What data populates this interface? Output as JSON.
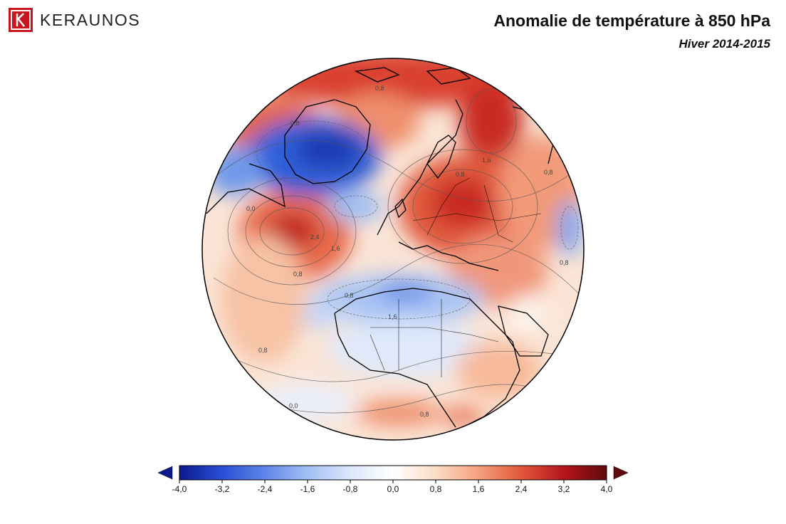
{
  "header": {
    "brand": "KERAUNOS",
    "title": "Anomalie de température à 850 hPa",
    "subtitle": "Hiver 2014-2015"
  },
  "map": {
    "contour_labels": [
      "0,8",
      "1,6",
      "0,8",
      "1,6",
      "0,8",
      "0,8",
      "0,0",
      "2,4",
      "1,6",
      "0,8",
      "0,8",
      "0,8",
      "0,8",
      "0,0",
      "0,8"
    ]
  },
  "colorbar": {
    "ticks": [
      "-4,0",
      "-3,2",
      "-2,4",
      "-1,6",
      "-0,8",
      "0,0",
      "0,8",
      "1,6",
      "2,4",
      "3,2",
      "4,0"
    ],
    "min": -4.0,
    "max": 4.0,
    "colors": [
      "#0a1a8c",
      "#2a4fd6",
      "#5f86e8",
      "#a2bff3",
      "#dbe7fb",
      "#ffffff",
      "#fcdcc6",
      "#f5a27e",
      "#e2573b",
      "#b5141b",
      "#5e0a0e"
    ]
  },
  "colors": {
    "brand_red": "#c8141e",
    "globe_outline": "#000000"
  }
}
